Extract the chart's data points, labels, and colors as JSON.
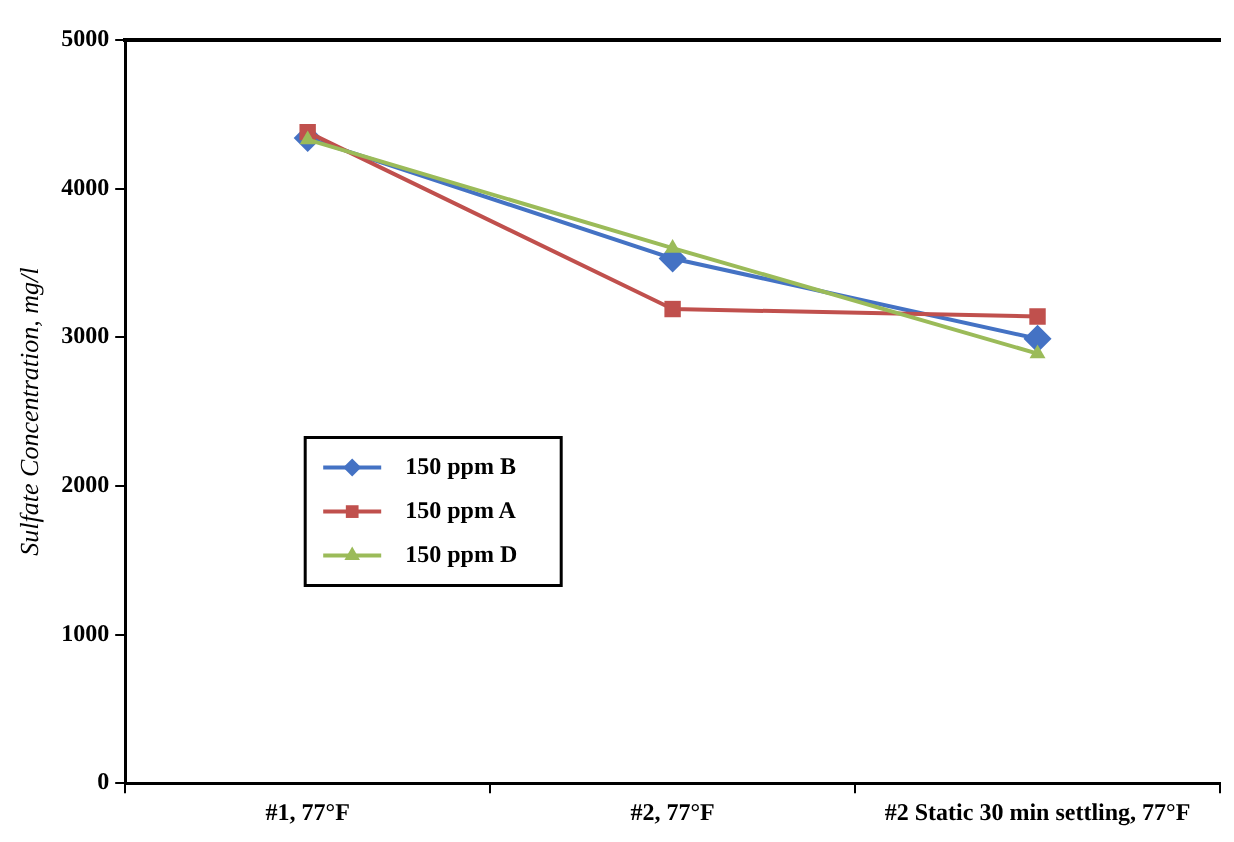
{
  "chart_data": {
    "type": "line",
    "ylabel": "Sulfate Concentration, mg/l",
    "categories": [
      "#1, 77°F",
      "#2, 77°F",
      "#2 Static 30 min settling, 77°F"
    ],
    "series": [
      {
        "name": "150 ppm B",
        "color": "#4472c4",
        "marker": "diamond",
        "values": [
          4340,
          3530,
          2990
        ]
      },
      {
        "name": "150 ppm A",
        "color": "#c0504d",
        "marker": "square",
        "values": [
          4380,
          3190,
          3140
        ]
      },
      {
        "name": "150 ppm D",
        "color": "#9bbb59",
        "marker": "triangle",
        "values": [
          4330,
          3600,
          2890
        ]
      }
    ],
    "ylim": [
      0,
      5000
    ],
    "yticks": [
      0,
      1000,
      2000,
      3000,
      4000,
      5000
    ],
    "grid": false,
    "legend": "left",
    "line_style": "solid"
  }
}
